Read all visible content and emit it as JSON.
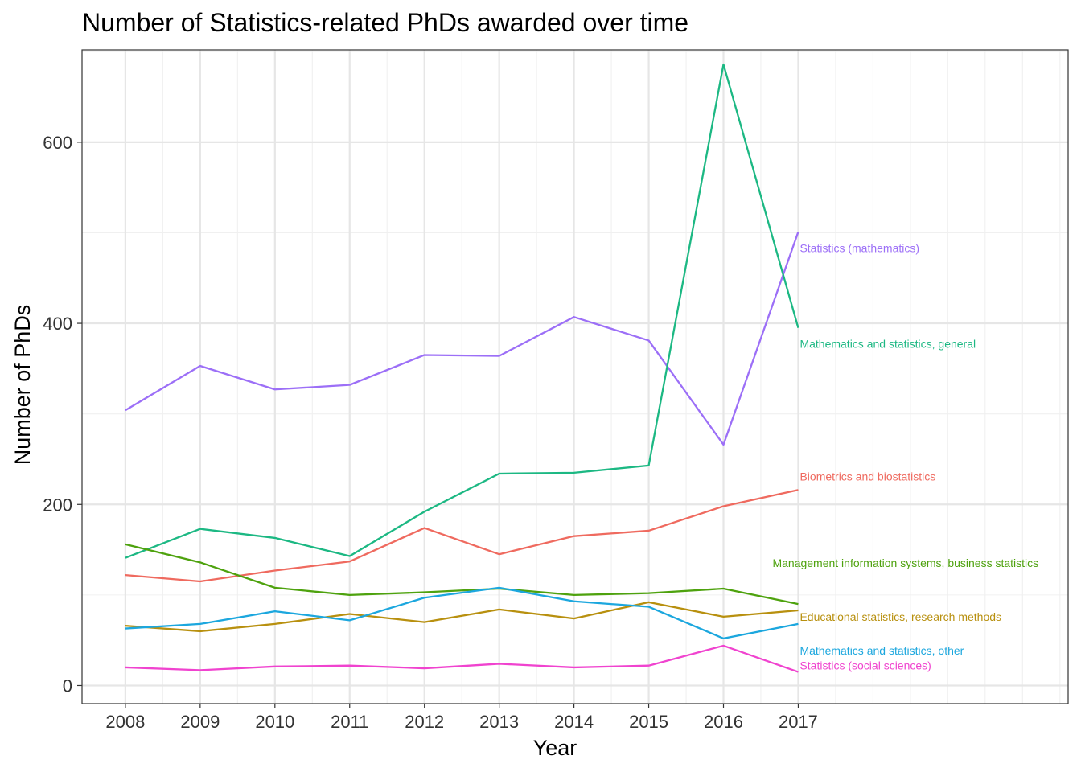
{
  "chart_data": {
    "type": "line",
    "title": "Number of Statistics-related PhDs awarded over time",
    "xlabel": "Year",
    "ylabel": "Number of PhDs",
    "x": [
      2008,
      2009,
      2010,
      2011,
      2012,
      2013,
      2014,
      2015,
      2016,
      2017
    ],
    "x_tick_labels": [
      "2008",
      "2009",
      "2010",
      "2011",
      "2012",
      "2013",
      "2014",
      "2015",
      "2016",
      "2017"
    ],
    "xlim": [
      2007.42,
      2020.61
    ],
    "ylim": [
      -20,
      702
    ],
    "y_ticks": [
      0,
      200,
      400,
      600
    ],
    "y_tick_labels": [
      "0",
      "200",
      "400",
      "600"
    ],
    "grid": true,
    "legend": "direct labels at line ends",
    "series": [
      {
        "name": "Statistics (mathematics)",
        "color": "#9c6ff7",
        "values": [
          304,
          353,
          327,
          332,
          365,
          364,
          407,
          381,
          266,
          501
        ]
      },
      {
        "name": "Mathematics and statistics, general",
        "color": "#1cb883",
        "values": [
          141,
          173,
          163,
          143,
          192,
          234,
          235,
          243,
          686,
          395
        ]
      },
      {
        "name": "Biometrics and biostatistics",
        "color": "#ef6a5f",
        "values": [
          122,
          115,
          127,
          137,
          174,
          145,
          165,
          171,
          198,
          216
        ]
      },
      {
        "name": "Management information systems, business statistics",
        "color": "#4ea20e",
        "values": [
          156,
          136,
          108,
          100,
          103,
          107,
          100,
          102,
          107,
          90
        ]
      },
      {
        "name": "Educational statistics, research methods",
        "color": "#b8900f",
        "values": [
          66,
          60,
          68,
          79,
          70,
          84,
          74,
          92,
          76,
          83
        ]
      },
      {
        "name": "Mathematics and statistics, other",
        "color": "#1ca7de",
        "values": [
          63,
          68,
          82,
          72,
          97,
          108,
          93,
          87,
          52,
          68
        ]
      },
      {
        "name": "Statistics (social sciences)",
        "color": "#f043cf",
        "values": [
          20,
          17,
          21,
          22,
          19,
          24,
          20,
          22,
          44,
          15
        ]
      }
    ]
  }
}
